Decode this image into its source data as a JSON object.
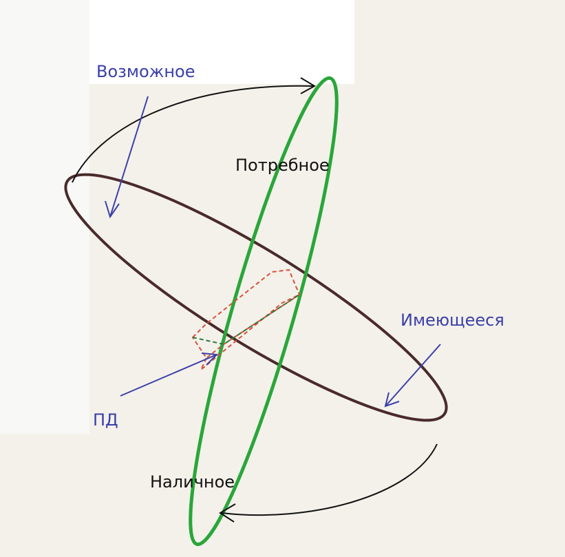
{
  "labels": {
    "possible": "Возможное",
    "required": "Потребное",
    "existing": "Имеющееся",
    "pd": "ПД",
    "available": "Наличное"
  }
}
